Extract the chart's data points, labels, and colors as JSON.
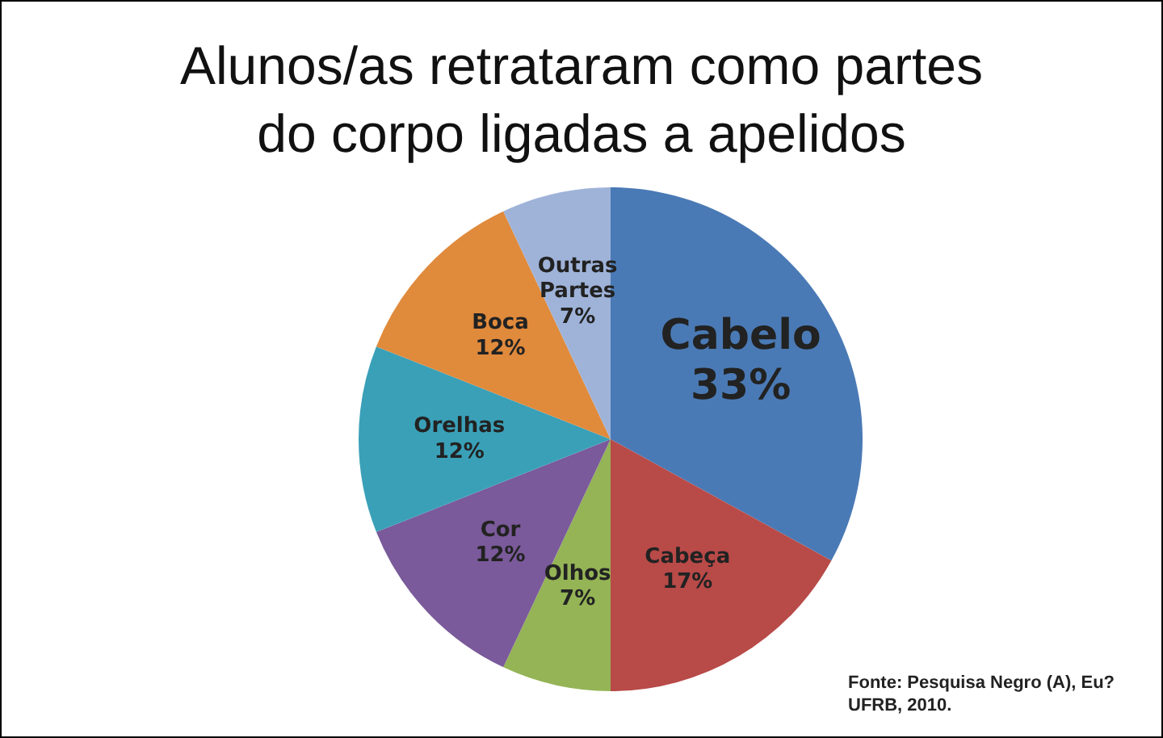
{
  "chart_data": {
    "type": "pie",
    "title": "Alunos/as retrataram como partes do corpo ligadas a apelidos",
    "categories": [
      "Cabelo",
      "Cabeça",
      "Olhos",
      "Cor",
      "Orelhas",
      "Boca",
      "Outras Partes"
    ],
    "values": [
      33,
      17,
      7,
      12,
      12,
      12,
      7
    ],
    "colors": [
      "#4a7ab5",
      "#b84a48",
      "#94b456",
      "#7a5a9a",
      "#3aa0b8",
      "#e08a3c",
      "#9fb3d9"
    ],
    "value_labels": [
      "33%",
      "17%",
      "7%",
      "12%",
      "12%",
      "12%",
      "7%"
    ],
    "annotations": [
      "Fonte: Pesquisa Negro (A), Eu? UFRB, 2010."
    ]
  }
}
